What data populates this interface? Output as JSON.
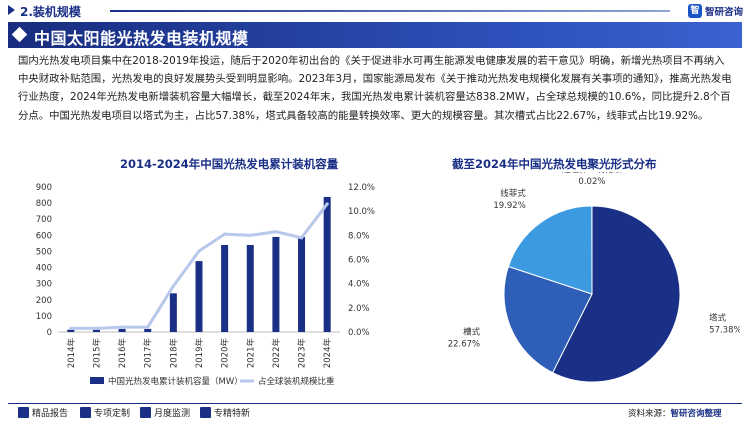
{
  "header": {
    "section_title": "2.装机规模",
    "logo_text": "智研咨询",
    "logo_mark": "智"
  },
  "banner": {
    "title": "中国太阳能光热发电装机规模"
  },
  "intro_text": "国内光热发电项目集中在2018-2019年投运，随后于2020年初出台的《关于促进非水可再生能源发电健康发展的若干意见》明确，新增光热项目不再纳入中央财政补贴范围，光热发电的良好发展势头受到明显影响。2023年3月，国家能源局发布《关于推动光热发电规模化发展有关事项的通知》，推高光热发电行业热度，2024年光热发电新增装机容量大幅增长，截至2024年末，我国光热发电累计装机容量达838.2MW，占全球总规模的10.6%，同比提升2.8个百分点。中国光热发电项目以塔式为主，占比57.38%，塔式具备较高的能量转换效率、更大的规模容量。其次槽式占比22.67%，线菲式占比19.92%。",
  "chart_data": [
    {
      "type": "bar",
      "title": "2014-2024年中国光热发电累计装机容量",
      "categories": [
        "2014年",
        "2015年",
        "2016年",
        "2017年",
        "2018年",
        "2019年",
        "2020年",
        "2021年",
        "2022年",
        "2023年",
        "2024年"
      ],
      "series": [
        {
          "name": "中国光热发电累计装机容量（MW）",
          "type": "bar",
          "axis": "left",
          "color": "#1a2f86",
          "values": [
            14,
            14,
            19,
            19,
            240,
            440,
            540,
            540,
            590,
            590,
            838.2
          ]
        },
        {
          "name": "占全球装机规模比重",
          "type": "line",
          "axis": "right",
          "color": "#b8c7ec",
          "values": [
            0.3,
            0.3,
            0.4,
            0.4,
            3.8,
            6.7,
            8.1,
            8.0,
            8.3,
            7.8,
            10.6
          ]
        }
      ],
      "y_left": {
        "min": 0,
        "max": 900,
        "step": 100,
        "ticks": [
          "0",
          "100",
          "200",
          "300",
          "400",
          "500",
          "600",
          "700",
          "800",
          "900"
        ]
      },
      "y_right": {
        "min": 0,
        "max": 12,
        "step": 2,
        "ticks": [
          "0.0%",
          "2.0%",
          "4.0%",
          "6.0%",
          "8.0%",
          "10.0%",
          "12.0%"
        ]
      },
      "grid": false,
      "legend_placement": "bottom"
    },
    {
      "type": "pie",
      "title": "截至2024年中国光热发电聚光形式分布",
      "slices": [
        {
          "label": "塔式",
          "value": 57.38,
          "value_label": "57.38%",
          "color": "#1a2f86"
        },
        {
          "label": "槽式",
          "value": 22.67,
          "value_label": "22.67%",
          "color": "#2e5eb8"
        },
        {
          "label": "线菲式",
          "value": 19.92,
          "value_label": "19.92%",
          "color": "#3c9be0"
        },
        {
          "label": "超临界二氧化碳",
          "value": 0.02,
          "value_label": "0.02%",
          "color": "#8ec3ef"
        }
      ]
    }
  ],
  "footer": {
    "items": [
      {
        "icon": "report-icon",
        "label": "精品报告"
      },
      {
        "icon": "data-icon",
        "label": "专项定制"
      },
      {
        "icon": "chart-icon",
        "label": "月度监测"
      },
      {
        "icon": "star-icon",
        "label": "专精特新"
      }
    ],
    "source_label": "资料来源：",
    "source_value": "智研咨询整理"
  }
}
